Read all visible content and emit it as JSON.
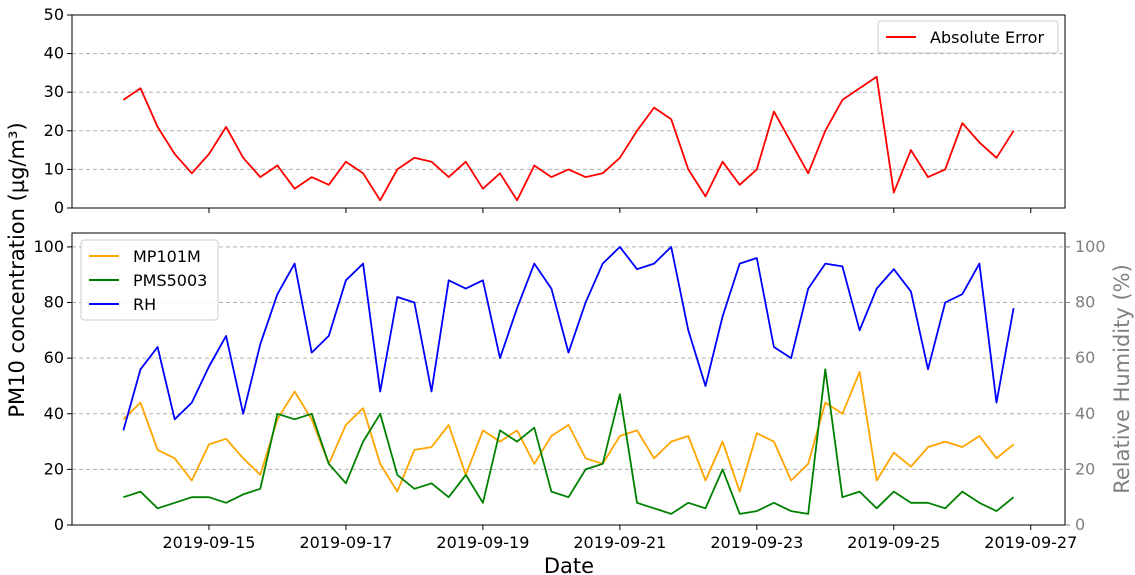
{
  "chart_data": [
    {
      "type": "line",
      "xlabel": "",
      "ylabel": "PM10 concentration (µg/m³)",
      "ylim": [
        0,
        50
      ],
      "y_ticks": [
        "0",
        "10",
        "20",
        "30",
        "40",
        "50"
      ],
      "x_range": [
        "2019-09-13",
        "2019-09-27 12:00"
      ],
      "grid": "horizontal dashed",
      "legend_position": "top-right",
      "series": [
        {
          "name": "Absolute Error",
          "color": "#ff0000",
          "x": [
            "2019-09-13 18:00",
            "2019-09-14 00:00",
            "2019-09-14 06:00",
            "2019-09-14 12:00",
            "2019-09-14 18:00",
            "2019-09-15 00:00",
            "2019-09-15 06:00",
            "2019-09-15 12:00",
            "2019-09-15 18:00",
            "2019-09-16 00:00",
            "2019-09-16 06:00",
            "2019-09-16 12:00",
            "2019-09-16 18:00",
            "2019-09-17 00:00",
            "2019-09-17 06:00",
            "2019-09-17 12:00",
            "2019-09-17 18:00",
            "2019-09-18 00:00",
            "2019-09-18 06:00",
            "2019-09-18 12:00",
            "2019-09-18 18:00",
            "2019-09-19 00:00",
            "2019-09-19 06:00",
            "2019-09-19 12:00",
            "2019-09-19 18:00",
            "2019-09-20 00:00",
            "2019-09-20 06:00",
            "2019-09-20 12:00",
            "2019-09-20 18:00",
            "2019-09-21 00:00",
            "2019-09-21 06:00",
            "2019-09-21 12:00",
            "2019-09-21 18:00",
            "2019-09-22 00:00",
            "2019-09-22 06:00",
            "2019-09-22 12:00",
            "2019-09-22 18:00",
            "2019-09-23 00:00",
            "2019-09-23 06:00",
            "2019-09-23 12:00",
            "2019-09-23 18:00",
            "2019-09-24 00:00",
            "2019-09-24 06:00",
            "2019-09-24 12:00",
            "2019-09-24 18:00",
            "2019-09-25 00:00",
            "2019-09-25 06:00",
            "2019-09-25 12:00",
            "2019-09-25 18:00",
            "2019-09-26 00:00",
            "2019-09-26 06:00",
            "2019-09-26 12:00",
            "2019-09-26 18:00"
          ],
          "values": [
            28,
            31,
            21,
            14,
            9,
            14,
            21,
            13,
            8,
            11,
            5,
            8,
            6,
            12,
            9,
            2,
            10,
            13,
            12,
            8,
            12,
            5,
            9,
            2,
            11,
            8,
            10,
            8,
            9,
            13,
            20,
            26,
            23,
            10,
            3,
            12,
            6,
            10,
            25,
            17,
            9,
            20,
            28,
            31,
            34,
            4,
            15,
            8,
            10,
            22,
            17,
            13,
            20
          ]
        }
      ]
    },
    {
      "type": "line",
      "xlabel": "Date",
      "ylabel": "PM10 concentration (µg/m³)",
      "ylabel_right": "Relative Humidity (%)",
      "ylim": [
        0,
        105
      ],
      "ylim_right": [
        0,
        105
      ],
      "y_ticks": [
        "0",
        "20",
        "40",
        "60",
        "80",
        "100"
      ],
      "x_ticks": [
        "2019-09-15",
        "2019-09-17",
        "2019-09-19",
        "2019-09-21",
        "2019-09-23",
        "2019-09-25",
        "2019-09-27"
      ],
      "x_range": [
        "2019-09-13",
        "2019-09-27 12:00"
      ],
      "grid": "horizontal dashed",
      "legend_position": "top-left",
      "series": [
        {
          "name": "MP101M",
          "color": "#ffa500",
          "x": [
            "2019-09-13 18:00",
            "2019-09-14 00:00",
            "2019-09-14 06:00",
            "2019-09-14 12:00",
            "2019-09-14 18:00",
            "2019-09-15 00:00",
            "2019-09-15 06:00",
            "2019-09-15 12:00",
            "2019-09-15 18:00",
            "2019-09-16 00:00",
            "2019-09-16 06:00",
            "2019-09-16 12:00",
            "2019-09-16 18:00",
            "2019-09-17 00:00",
            "2019-09-17 06:00",
            "2019-09-17 12:00",
            "2019-09-17 18:00",
            "2019-09-18 00:00",
            "2019-09-18 06:00",
            "2019-09-18 12:00",
            "2019-09-18 18:00",
            "2019-09-19 00:00",
            "2019-09-19 06:00",
            "2019-09-19 12:00",
            "2019-09-19 18:00",
            "2019-09-20 00:00",
            "2019-09-20 06:00",
            "2019-09-20 12:00",
            "2019-09-20 18:00",
            "2019-09-21 00:00",
            "2019-09-21 06:00",
            "2019-09-21 12:00",
            "2019-09-21 18:00",
            "2019-09-22 00:00",
            "2019-09-22 06:00",
            "2019-09-22 12:00",
            "2019-09-22 18:00",
            "2019-09-23 00:00",
            "2019-09-23 06:00",
            "2019-09-23 12:00",
            "2019-09-23 18:00",
            "2019-09-24 00:00",
            "2019-09-24 06:00",
            "2019-09-24 12:00",
            "2019-09-24 18:00",
            "2019-09-25 00:00",
            "2019-09-25 06:00",
            "2019-09-25 12:00",
            "2019-09-25 18:00",
            "2019-09-26 00:00",
            "2019-09-26 06:00",
            "2019-09-26 12:00",
            "2019-09-26 18:00"
          ],
          "values": [
            38,
            44,
            27,
            24,
            16,
            29,
            31,
            24,
            18,
            38,
            48,
            38,
            22,
            36,
            42,
            22,
            12,
            27,
            28,
            36,
            18,
            34,
            30,
            34,
            22,
            32,
            36,
            24,
            22,
            32,
            34,
            24,
            30,
            32,
            16,
            30,
            12,
            33,
            30,
            16,
            22,
            44,
            40,
            55,
            16,
            26,
            21,
            28,
            30,
            28,
            32,
            24,
            29
          ]
        },
        {
          "name": "PMS5003",
          "color": "#008000",
          "x": [
            "2019-09-13 18:00",
            "2019-09-14 00:00",
            "2019-09-14 06:00",
            "2019-09-14 12:00",
            "2019-09-14 18:00",
            "2019-09-15 00:00",
            "2019-09-15 06:00",
            "2019-09-15 12:00",
            "2019-09-15 18:00",
            "2019-09-16 00:00",
            "2019-09-16 06:00",
            "2019-09-16 12:00",
            "2019-09-16 18:00",
            "2019-09-17 00:00",
            "2019-09-17 06:00",
            "2019-09-17 12:00",
            "2019-09-17 18:00",
            "2019-09-18 00:00",
            "2019-09-18 06:00",
            "2019-09-18 12:00",
            "2019-09-18 18:00",
            "2019-09-19 00:00",
            "2019-09-19 06:00",
            "2019-09-19 12:00",
            "2019-09-19 18:00",
            "2019-09-20 00:00",
            "2019-09-20 06:00",
            "2019-09-20 12:00",
            "2019-09-20 18:00",
            "2019-09-21 00:00",
            "2019-09-21 06:00",
            "2019-09-21 12:00",
            "2019-09-21 18:00",
            "2019-09-22 00:00",
            "2019-09-22 06:00",
            "2019-09-22 12:00",
            "2019-09-22 18:00",
            "2019-09-23 00:00",
            "2019-09-23 06:00",
            "2019-09-23 12:00",
            "2019-09-23 18:00",
            "2019-09-24 00:00",
            "2019-09-24 06:00",
            "2019-09-24 12:00",
            "2019-09-24 18:00",
            "2019-09-25 00:00",
            "2019-09-25 06:00",
            "2019-09-25 12:00",
            "2019-09-25 18:00",
            "2019-09-26 00:00",
            "2019-09-26 06:00",
            "2019-09-26 12:00",
            "2019-09-26 18:00"
          ],
          "values": [
            10,
            12,
            6,
            8,
            10,
            10,
            8,
            11,
            13,
            40,
            38,
            40,
            22,
            15,
            30,
            40,
            18,
            13,
            15,
            10,
            18,
            8,
            34,
            30,
            35,
            12,
            10,
            20,
            22,
            47,
            8,
            6,
            4,
            8,
            6,
            20,
            4,
            5,
            8,
            5,
            4,
            56,
            10,
            12,
            6,
            12,
            8,
            8,
            6,
            12,
            8,
            5,
            10
          ]
        },
        {
          "name": "RH",
          "color": "#0000ff",
          "axis": "right",
          "x": [
            "2019-09-13 18:00",
            "2019-09-14 00:00",
            "2019-09-14 06:00",
            "2019-09-14 12:00",
            "2019-09-14 18:00",
            "2019-09-15 00:00",
            "2019-09-15 06:00",
            "2019-09-15 12:00",
            "2019-09-15 18:00",
            "2019-09-16 00:00",
            "2019-09-16 06:00",
            "2019-09-16 12:00",
            "2019-09-16 18:00",
            "2019-09-17 00:00",
            "2019-09-17 06:00",
            "2019-09-17 12:00",
            "2019-09-17 18:00",
            "2019-09-18 00:00",
            "2019-09-18 06:00",
            "2019-09-18 12:00",
            "2019-09-18 18:00",
            "2019-09-19 00:00",
            "2019-09-19 06:00",
            "2019-09-19 12:00",
            "2019-09-19 18:00",
            "2019-09-20 00:00",
            "2019-09-20 06:00",
            "2019-09-20 12:00",
            "2019-09-20 18:00",
            "2019-09-21 00:00",
            "2019-09-21 06:00",
            "2019-09-21 12:00",
            "2019-09-21 18:00",
            "2019-09-22 00:00",
            "2019-09-22 06:00",
            "2019-09-22 12:00",
            "2019-09-22 18:00",
            "2019-09-23 00:00",
            "2019-09-23 06:00",
            "2019-09-23 12:00",
            "2019-09-23 18:00",
            "2019-09-24 00:00",
            "2019-09-24 06:00",
            "2019-09-24 12:00",
            "2019-09-24 18:00",
            "2019-09-25 00:00",
            "2019-09-25 06:00",
            "2019-09-25 12:00",
            "2019-09-25 18:00",
            "2019-09-26 00:00",
            "2019-09-26 06:00",
            "2019-09-26 12:00",
            "2019-09-26 18:00"
          ],
          "values": [
            34,
            56,
            64,
            38,
            44,
            57,
            68,
            40,
            65,
            83,
            94,
            62,
            68,
            88,
            94,
            48,
            82,
            80,
            48,
            88,
            85,
            88,
            60,
            78,
            94,
            85,
            62,
            80,
            94,
            100,
            92,
            94,
            100,
            70,
            50,
            75,
            94,
            96,
            64,
            60,
            85,
            94,
            93,
            70,
            85,
            92,
            84,
            56,
            80,
            83,
            94,
            44,
            78
          ]
        }
      ]
    }
  ]
}
